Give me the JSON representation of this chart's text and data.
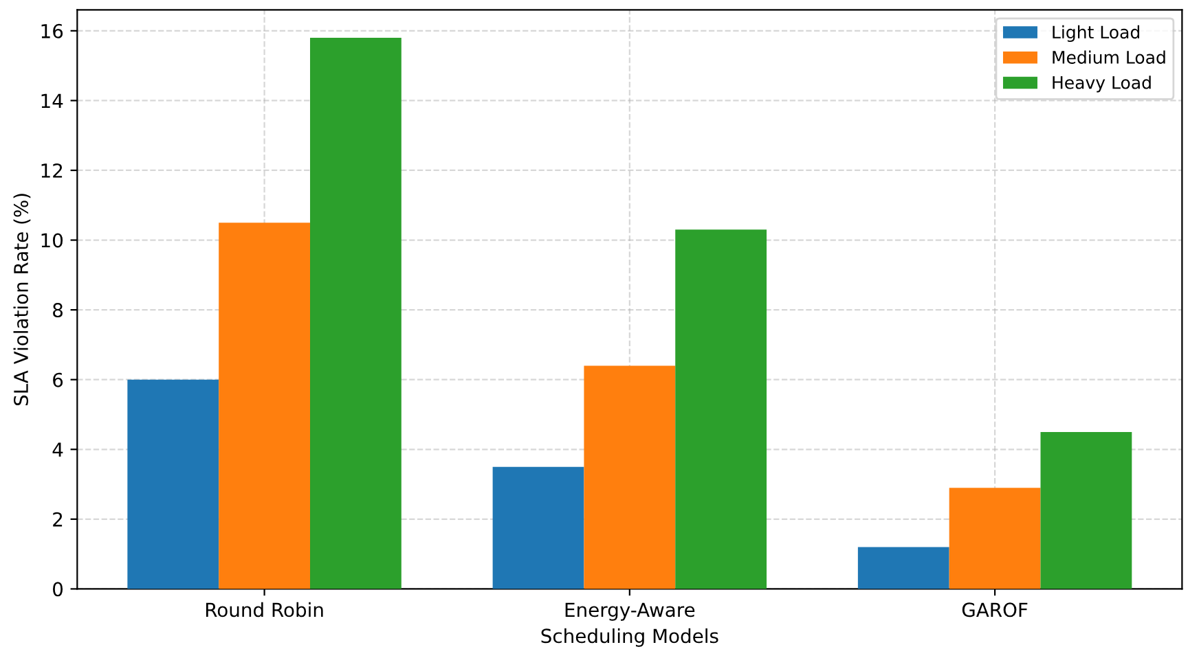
{
  "chart_data": {
    "type": "bar",
    "xlabel": "Scheduling Models",
    "ylabel": "SLA Violation Rate (%)",
    "categories": [
      "Round Robin",
      "Energy-Aware",
      "GAROF"
    ],
    "series": [
      {
        "name": "Light Load",
        "color": "#1f77b4",
        "values": [
          6.0,
          3.5,
          1.2
        ]
      },
      {
        "name": "Medium Load",
        "color": "#ff7f0e",
        "values": [
          10.5,
          6.4,
          2.9
        ]
      },
      {
        "name": "Heavy Load",
        "color": "#2ca02c",
        "values": [
          15.8,
          10.3,
          4.5
        ]
      }
    ],
    "ylim": [
      0,
      16.6
    ],
    "yticks": [
      0,
      2,
      4,
      6,
      8,
      10,
      12,
      14,
      16
    ],
    "grid": true,
    "legend": "top right"
  }
}
